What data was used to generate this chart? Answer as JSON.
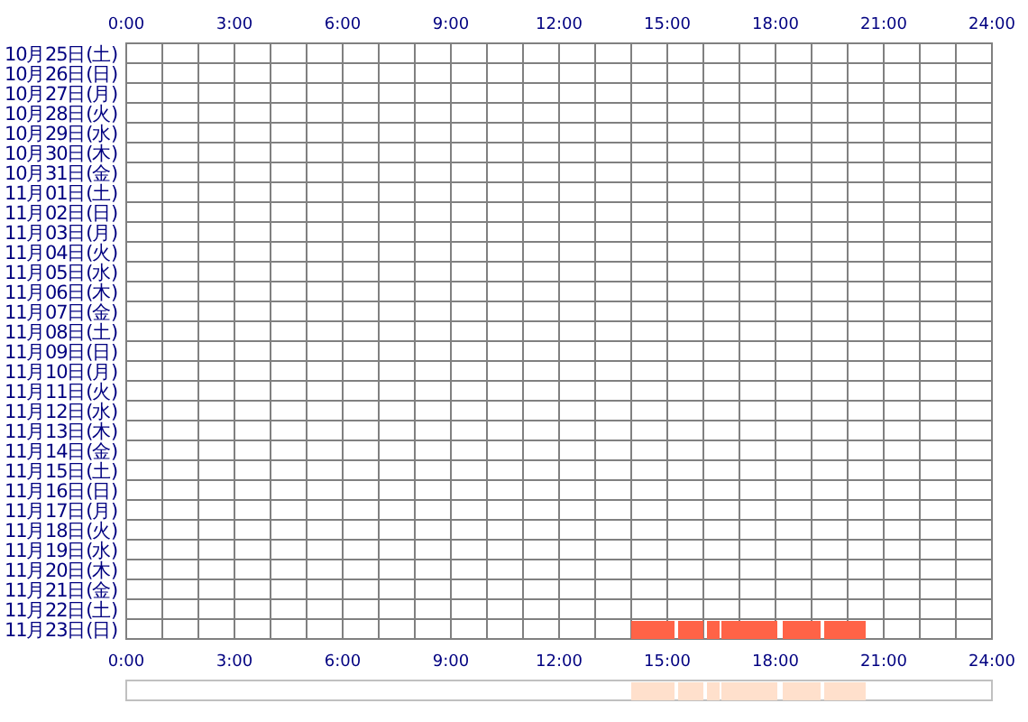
{
  "chart_data": [
    {
      "type": "bar",
      "orientation": "horizontal",
      "grid": true,
      "categories": [
        "10月25日(土)",
        "10月26日(日)",
        "10月27日(月)",
        "10月28日(火)",
        "10月29日(水)",
        "10月30日(木)",
        "10月31日(金)",
        "11月01日(土)",
        "11月02日(日)",
        "11月03日(月)",
        "11月04日(火)",
        "11月05日(水)",
        "11月06日(木)",
        "11月07日(金)",
        "11月08日(土)",
        "11月09日(日)",
        "11月10日(月)",
        "11月11日(火)",
        "11月12日(水)",
        "11月13日(木)",
        "11月14日(金)",
        "11月15日(土)",
        "11月16日(日)",
        "11月17日(月)",
        "11月18日(火)",
        "11月19日(水)",
        "11月20日(木)",
        "11月21日(金)",
        "11月22日(土)",
        "11月23日(日)"
      ],
      "series": [
        {
          "color": "#ff6347",
          "base": [
            null,
            null,
            null,
            null,
            null,
            null,
            null,
            null,
            null,
            null,
            null,
            null,
            null,
            null,
            null,
            null,
            null,
            null,
            null,
            null,
            null,
            null,
            null,
            null,
            null,
            null,
            null,
            null,
            null,
            14.0
          ],
          "values": [
            null,
            null,
            null,
            null,
            null,
            null,
            null,
            null,
            null,
            null,
            null,
            null,
            null,
            null,
            null,
            null,
            null,
            null,
            null,
            null,
            null,
            null,
            null,
            null,
            null,
            null,
            null,
            null,
            null,
            1.2
          ]
        },
        {
          "color": "#ff6347",
          "base": [
            null,
            null,
            null,
            null,
            null,
            null,
            null,
            null,
            null,
            null,
            null,
            null,
            null,
            null,
            null,
            null,
            null,
            null,
            null,
            null,
            null,
            null,
            null,
            null,
            null,
            null,
            null,
            null,
            null,
            15.3
          ],
          "values": [
            null,
            null,
            null,
            null,
            null,
            null,
            null,
            null,
            null,
            null,
            null,
            null,
            null,
            null,
            null,
            null,
            null,
            null,
            null,
            null,
            null,
            null,
            null,
            null,
            null,
            null,
            null,
            null,
            null,
            0.7
          ]
        },
        {
          "color": "#ff6347",
          "base": [
            null,
            null,
            null,
            null,
            null,
            null,
            null,
            null,
            null,
            null,
            null,
            null,
            null,
            null,
            null,
            null,
            null,
            null,
            null,
            null,
            null,
            null,
            null,
            null,
            null,
            null,
            null,
            null,
            null,
            16.1
          ],
          "values": [
            null,
            null,
            null,
            null,
            null,
            null,
            null,
            null,
            null,
            null,
            null,
            null,
            null,
            null,
            null,
            null,
            null,
            null,
            null,
            null,
            null,
            null,
            null,
            null,
            null,
            null,
            null,
            null,
            null,
            0.35
          ]
        },
        {
          "color": "#ff6347",
          "base": [
            null,
            null,
            null,
            null,
            null,
            null,
            null,
            null,
            null,
            null,
            null,
            null,
            null,
            null,
            null,
            null,
            null,
            null,
            null,
            null,
            null,
            null,
            null,
            null,
            null,
            null,
            null,
            null,
            null,
            16.5
          ],
          "values": [
            null,
            null,
            null,
            null,
            null,
            null,
            null,
            null,
            null,
            null,
            null,
            null,
            null,
            null,
            null,
            null,
            null,
            null,
            null,
            null,
            null,
            null,
            null,
            null,
            null,
            null,
            null,
            null,
            null,
            1.55
          ]
        },
        {
          "color": "#ff6347",
          "base": [
            null,
            null,
            null,
            null,
            null,
            null,
            null,
            null,
            null,
            null,
            null,
            null,
            null,
            null,
            null,
            null,
            null,
            null,
            null,
            null,
            null,
            null,
            null,
            null,
            null,
            null,
            null,
            null,
            null,
            18.2
          ],
          "values": [
            null,
            null,
            null,
            null,
            null,
            null,
            null,
            null,
            null,
            null,
            null,
            null,
            null,
            null,
            null,
            null,
            null,
            null,
            null,
            null,
            null,
            null,
            null,
            null,
            null,
            null,
            null,
            null,
            null,
            1.05
          ]
        },
        {
          "color": "#ff6347",
          "base": [
            null,
            null,
            null,
            null,
            null,
            null,
            null,
            null,
            null,
            null,
            null,
            null,
            null,
            null,
            null,
            null,
            null,
            null,
            null,
            null,
            null,
            null,
            null,
            null,
            null,
            null,
            null,
            null,
            null,
            19.35
          ],
          "values": [
            null,
            null,
            null,
            null,
            null,
            null,
            null,
            null,
            null,
            null,
            null,
            null,
            null,
            null,
            null,
            null,
            null,
            null,
            null,
            null,
            null,
            null,
            null,
            null,
            null,
            null,
            null,
            null,
            null,
            1.15
          ]
        }
      ],
      "xlim": [
        0,
        24
      ],
      "xticks": [
        {
          "value": 0,
          "label": "0:00"
        },
        {
          "value": 1,
          "label": null
        },
        {
          "value": 2,
          "label": null
        },
        {
          "value": 3,
          "label": "3:00"
        },
        {
          "value": 4,
          "label": null
        },
        {
          "value": 5,
          "label": null
        },
        {
          "value": 6,
          "label": "6:00"
        },
        {
          "value": 7,
          "label": null
        },
        {
          "value": 8,
          "label": null
        },
        {
          "value": 9,
          "label": "9:00"
        },
        {
          "value": 10,
          "label": null
        },
        {
          "value": 11,
          "label": null
        },
        {
          "value": 12,
          "label": "12:00"
        },
        {
          "value": 13,
          "label": null
        },
        {
          "value": 14,
          "label": null
        },
        {
          "value": 15,
          "label": "15:00"
        },
        {
          "value": 16,
          "label": null
        },
        {
          "value": 17,
          "label": null
        },
        {
          "value": 18,
          "label": "18:00"
        },
        {
          "value": 19,
          "label": null
        },
        {
          "value": 20,
          "label": null
        },
        {
          "value": 21,
          "label": "21:00"
        },
        {
          "value": 22,
          "label": null
        },
        {
          "value": 23,
          "label": null
        },
        {
          "value": 24,
          "label": "24:00"
        }
      ],
      "x2lim": [
        0,
        24
      ],
      "x2ticks": [
        {
          "value": 0,
          "label": "0:00"
        },
        {
          "value": 3,
          "label": "3:00"
        },
        {
          "value": 6,
          "label": "6:00"
        },
        {
          "value": 9,
          "label": "9:00"
        },
        {
          "value": 12,
          "label": "12:00"
        },
        {
          "value": 15,
          "label": "15:00"
        },
        {
          "value": 18,
          "label": "18:00"
        },
        {
          "value": 21,
          "label": "21:00"
        },
        {
          "value": 24,
          "label": "24:00"
        }
      ]
    },
    {
      "type": "bar",
      "orientation": "horizontal",
      "categories": [
        null
      ],
      "xlim": [
        0,
        24
      ],
      "series": [
        {
          "color": "#ffe0cc",
          "base": [
            14.0
          ],
          "values": [
            1.2
          ]
        },
        {
          "color": "#ffe0cc",
          "base": [
            15.3
          ],
          "values": [
            0.7
          ]
        },
        {
          "color": "#ffe0cc",
          "base": [
            16.1
          ],
          "values": [
            0.35
          ]
        },
        {
          "color": "#ffe0cc",
          "base": [
            16.5
          ],
          "values": [
            1.55
          ]
        },
        {
          "color": "#ffe0cc",
          "base": [
            18.2
          ],
          "values": [
            1.05
          ]
        },
        {
          "color": "#ffe0cc",
          "base": [
            19.35
          ],
          "values": [
            1.15
          ]
        }
      ]
    }
  ]
}
